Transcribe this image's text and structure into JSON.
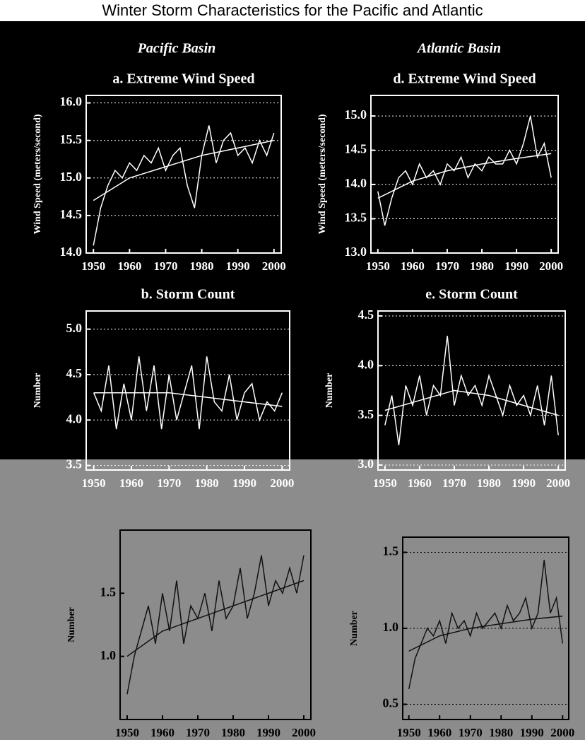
{
  "title": "Winter Storm Characteristics for the Pacific and Atlantic",
  "columns": [
    "Pacific Basin",
    "Atlantic Basin"
  ],
  "chart_data": [
    {
      "type": "line",
      "title": "a. Extreme Wind Speed",
      "ylabel": "Wind Speed (meters/second)",
      "xlim": [
        1948,
        2002
      ],
      "xticks": [
        1950,
        1960,
        1970,
        1980,
        1990,
        2000
      ],
      "ylim": [
        14.0,
        16.1
      ],
      "yticks": [
        {
          "value": 14.0,
          "label": "14.0"
        },
        {
          "value": 14.5,
          "label": "14.5"
        },
        {
          "value": 15.0,
          "label": "15.0"
        },
        {
          "value": 15.5,
          "label": "15.5"
        },
        {
          "value": 16.0,
          "label": "16.0"
        }
      ],
      "grid": true,
      "series": [
        {
          "color": "#ffffff",
          "x": [
            1950,
            1952,
            1954,
            1956,
            1958,
            1960,
            1962,
            1964,
            1966,
            1968,
            1970,
            1972,
            1974,
            1976,
            1978,
            1980,
            1982,
            1984,
            1986,
            1988,
            1990,
            1992,
            1994,
            1996,
            1998,
            2000
          ],
          "values": [
            14.1,
            14.6,
            14.9,
            15.1,
            15.0,
            15.2,
            15.1,
            15.3,
            15.2,
            15.4,
            15.1,
            15.3,
            15.4,
            14.9,
            14.6,
            15.3,
            15.7,
            15.2,
            15.5,
            15.6,
            15.3,
            15.4,
            15.2,
            15.5,
            15.3,
            15.6
          ]
        },
        {
          "color": "#ffffff",
          "x": [
            1950,
            1960,
            1970,
            1980,
            1990,
            2000
          ],
          "values": [
            14.7,
            15.0,
            15.15,
            15.3,
            15.4,
            15.5
          ]
        }
      ]
    },
    {
      "type": "line",
      "title": "d. Extreme Wind Speed",
      "ylabel": "Wind Speed (meters/second)",
      "xlim": [
        1948,
        2002
      ],
      "xticks": [
        1950,
        1960,
        1970,
        1980,
        1990,
        2000
      ],
      "ylim": [
        13.0,
        15.3
      ],
      "yticks": [
        {
          "value": 13.0,
          "label": "13.0"
        },
        {
          "value": 13.5,
          "label": "13.5"
        },
        {
          "value": 14.0,
          "label": "14.0"
        },
        {
          "value": 14.5,
          "label": "14.5"
        },
        {
          "value": 15.0,
          "label": "15.0"
        }
      ],
      "grid": true,
      "series": [
        {
          "color": "#ffffff",
          "x": [
            1950,
            1952,
            1954,
            1956,
            1958,
            1960,
            1962,
            1964,
            1966,
            1968,
            1970,
            1972,
            1974,
            1976,
            1978,
            1980,
            1982,
            1984,
            1986,
            1988,
            1990,
            1992,
            1994,
            1996,
            1998,
            2000
          ],
          "values": [
            13.9,
            13.4,
            13.8,
            14.1,
            14.2,
            14.0,
            14.3,
            14.1,
            14.2,
            14.0,
            14.3,
            14.2,
            14.4,
            14.1,
            14.3,
            14.2,
            14.4,
            14.3,
            14.3,
            14.5,
            14.3,
            14.6,
            15.0,
            14.4,
            14.6,
            14.1
          ]
        },
        {
          "color": "#ffffff",
          "x": [
            1950,
            1960,
            1970,
            1980,
            1990,
            2000
          ],
          "values": [
            13.8,
            14.05,
            14.2,
            14.3,
            14.38,
            14.45
          ]
        }
      ]
    },
    {
      "type": "line",
      "title": "b. Storm Count",
      "ylabel": "Number",
      "xlim": [
        1948,
        2002
      ],
      "xticks": [
        1950,
        1960,
        1970,
        1980,
        1990,
        2000
      ],
      "ylim": [
        3.45,
        5.2
      ],
      "yticks": [
        {
          "value": 3.5,
          "label": "3.5"
        },
        {
          "value": 4.0,
          "label": "4.0"
        },
        {
          "value": 4.5,
          "label": "4.5"
        },
        {
          "value": 5.0,
          "label": "5.0"
        }
      ],
      "grid": true,
      "series": [
        {
          "color": "#ffffff",
          "x": [
            1950,
            1952,
            1954,
            1956,
            1958,
            1960,
            1962,
            1964,
            1966,
            1968,
            1970,
            1972,
            1974,
            1976,
            1978,
            1980,
            1982,
            1984,
            1986,
            1988,
            1990,
            1992,
            1994,
            1996,
            1998,
            2000
          ],
          "values": [
            4.3,
            4.1,
            4.6,
            3.9,
            4.4,
            4.0,
            4.7,
            4.1,
            4.6,
            3.9,
            4.5,
            4.0,
            4.3,
            4.6,
            3.9,
            4.7,
            4.2,
            4.1,
            4.5,
            4.0,
            4.3,
            4.4,
            4.0,
            4.2,
            4.1,
            4.3
          ]
        },
        {
          "color": "#ffffff",
          "x": [
            1950,
            1960,
            1970,
            1980,
            1990,
            2000
          ],
          "values": [
            4.3,
            4.3,
            4.3,
            4.25,
            4.2,
            4.15
          ]
        }
      ]
    },
    {
      "type": "line",
      "title": "e. Storm Count",
      "ylabel": "Number",
      "xlim": [
        1948,
        2002
      ],
      "xticks": [
        1950,
        1960,
        1970,
        1980,
        1990,
        2000
      ],
      "ylim": [
        2.95,
        4.55
      ],
      "yticks": [
        {
          "value": 3.0,
          "label": "3.0"
        },
        {
          "value": 3.5,
          "label": "3.5"
        },
        {
          "value": 4.0,
          "label": "4.0"
        },
        {
          "value": 4.5,
          "label": "4.5"
        }
      ],
      "grid": true,
      "series": [
        {
          "color": "#ffffff",
          "x": [
            1950,
            1952,
            1954,
            1956,
            1958,
            1960,
            1962,
            1964,
            1966,
            1968,
            1970,
            1972,
            1974,
            1976,
            1978,
            1980,
            1982,
            1984,
            1986,
            1988,
            1990,
            1992,
            1994,
            1996,
            1998,
            2000
          ],
          "values": [
            3.4,
            3.7,
            3.2,
            3.8,
            3.6,
            3.9,
            3.5,
            3.8,
            3.7,
            4.3,
            3.6,
            3.9,
            3.7,
            3.8,
            3.6,
            3.9,
            3.7,
            3.5,
            3.8,
            3.6,
            3.7,
            3.5,
            3.8,
            3.4,
            3.9,
            3.3
          ]
        },
        {
          "color": "#ffffff",
          "x": [
            1950,
            1960,
            1970,
            1980,
            1990,
            2000
          ],
          "values": [
            3.55,
            3.65,
            3.75,
            3.7,
            3.6,
            3.5
          ]
        }
      ]
    },
    {
      "type": "line",
      "ylabel": "Number",
      "xlim": [
        1948,
        2002
      ],
      "xticks": [
        1950,
        1960,
        1970,
        1980,
        1990,
        2000
      ],
      "ylim": [
        0.5,
        2.0
      ],
      "yticks": [
        {
          "value": 1.0,
          "label": "1.0"
        },
        {
          "value": 1.5,
          "label": "1.5"
        }
      ],
      "grid": false,
      "series": [
        {
          "color": "#111111",
          "x": [
            1950,
            1952,
            1954,
            1956,
            1958,
            1960,
            1962,
            1964,
            1966,
            1968,
            1970,
            1972,
            1974,
            1976,
            1978,
            1980,
            1982,
            1984,
            1986,
            1988,
            1990,
            1992,
            1994,
            1996,
            1998,
            2000
          ],
          "values": [
            0.7,
            1.0,
            1.2,
            1.4,
            1.1,
            1.5,
            1.2,
            1.6,
            1.1,
            1.4,
            1.3,
            1.5,
            1.2,
            1.6,
            1.3,
            1.4,
            1.7,
            1.3,
            1.5,
            1.8,
            1.4,
            1.6,
            1.5,
            1.7,
            1.5,
            1.8
          ]
        },
        {
          "color": "#111111",
          "x": [
            1950,
            1960,
            1970,
            1980,
            1990,
            2000
          ],
          "values": [
            1.0,
            1.2,
            1.3,
            1.4,
            1.5,
            1.6
          ]
        }
      ]
    },
    {
      "type": "line",
      "ylabel": "Number",
      "xlim": [
        1948,
        2002
      ],
      "xticks": [
        1950,
        1960,
        1970,
        1980,
        1990,
        2000
      ],
      "ylim": [
        0.4,
        1.6
      ],
      "yticks": [
        {
          "value": 0.5,
          "label": "0.5"
        },
        {
          "value": 1.0,
          "label": "1.0"
        },
        {
          "value": 1.5,
          "label": "1.5"
        }
      ],
      "grid": true,
      "series": [
        {
          "color": "#111111",
          "x": [
            1950,
            1952,
            1954,
            1956,
            1958,
            1960,
            1962,
            1964,
            1966,
            1968,
            1970,
            1972,
            1974,
            1976,
            1978,
            1980,
            1982,
            1984,
            1986,
            1988,
            1990,
            1992,
            1994,
            1996,
            1998,
            2000
          ],
          "values": [
            0.6,
            0.8,
            0.9,
            1.0,
            0.95,
            1.05,
            0.9,
            1.1,
            1.0,
            1.05,
            0.95,
            1.1,
            1.0,
            1.05,
            1.1,
            1.0,
            1.15,
            1.05,
            1.1,
            1.2,
            1.0,
            1.1,
            1.45,
            1.1,
            1.2,
            0.9
          ]
        },
        {
          "color": "#111111",
          "x": [
            1950,
            1960,
            1970,
            1980,
            1990,
            2000
          ],
          "values": [
            0.85,
            0.95,
            1.0,
            1.03,
            1.06,
            1.08
          ]
        }
      ]
    }
  ]
}
